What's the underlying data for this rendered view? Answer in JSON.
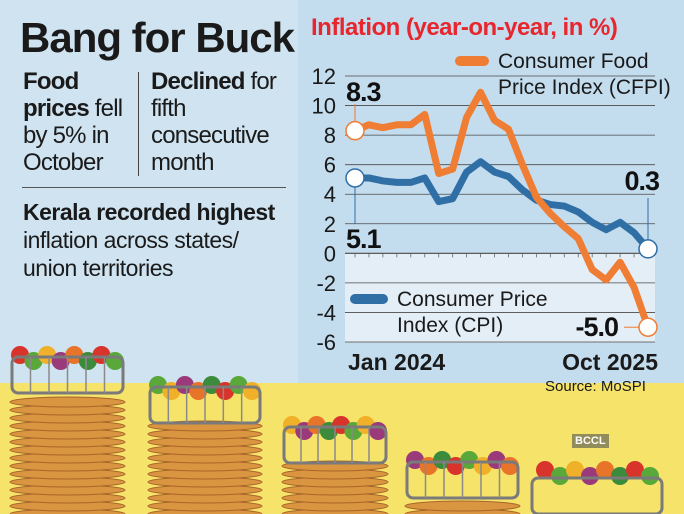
{
  "headline": "Bang for Buck",
  "callouts": {
    "left": {
      "bold": "Food prices",
      "text": " fell by 5% in October"
    },
    "right": {
      "bold": "Declined",
      "text": " for fifth consecutive month"
    },
    "kerala": {
      "bold": "Kerala recorded highest",
      "text": "inflation across states/ union territories"
    }
  },
  "source": "Source: MoSPI",
  "watermark": "BCCL",
  "colors": {
    "cfpi": "#ef7d34",
    "cpi": "#2f6fa6",
    "title": "#e8262d",
    "background": "#cfe3f0",
    "ground": "#f5e36a"
  },
  "chart_data": {
    "type": "line",
    "title": "Inflation (year-on-year, in %)",
    "x_start_label": "Jan 2024",
    "x_end_label": "Oct 2025",
    "x": [
      "Jan 2024",
      "Feb 2024",
      "Mar 2024",
      "Apr 2024",
      "May 2024",
      "Jun 2024",
      "Jul 2024",
      "Aug 2024",
      "Sep 2024",
      "Oct 2024",
      "Nov 2024",
      "Dec 2024",
      "Jan 2025",
      "Feb 2025",
      "Mar 2025",
      "Apr 2025",
      "May 2025",
      "Jun 2025",
      "Jul 2025",
      "Aug 2025",
      "Sep 2025",
      "Oct 2025"
    ],
    "ylim": [
      -6,
      12
    ],
    "yticks": [
      "12",
      "10",
      "8",
      "6",
      "4",
      "2",
      "0",
      "-2",
      "-4",
      "-6"
    ],
    "grid": true,
    "series": [
      {
        "name": "Consumer Food Price Index (CFPI)",
        "legend_line1": "Consumer Food",
        "legend_line2": "Price Index (CFPI)",
        "legend_position": "top-right",
        "values": [
          8.3,
          8.7,
          8.5,
          8.7,
          8.7,
          9.4,
          5.4,
          5.7,
          9.2,
          10.9,
          9.0,
          8.4,
          6.0,
          3.8,
          2.7,
          1.8,
          1.0,
          -1.1,
          -1.8,
          -0.6,
          -2.3,
          -5.0
        ],
        "start_label": "8.3",
        "end_label": "-5.0"
      },
      {
        "name": "Consumer Price Index (CPI)",
        "legend_line1": "Consumer Price",
        "legend_line2": "Index (CPI)",
        "legend_position": "bottom-left",
        "values": [
          5.1,
          5.1,
          4.9,
          4.8,
          4.8,
          5.1,
          3.5,
          3.7,
          5.5,
          6.2,
          5.5,
          5.2,
          4.3,
          3.6,
          3.3,
          3.2,
          2.8,
          2.1,
          1.6,
          2.1,
          1.4,
          0.3
        ],
        "start_label": "5.1",
        "end_label": "0.3"
      }
    ]
  }
}
